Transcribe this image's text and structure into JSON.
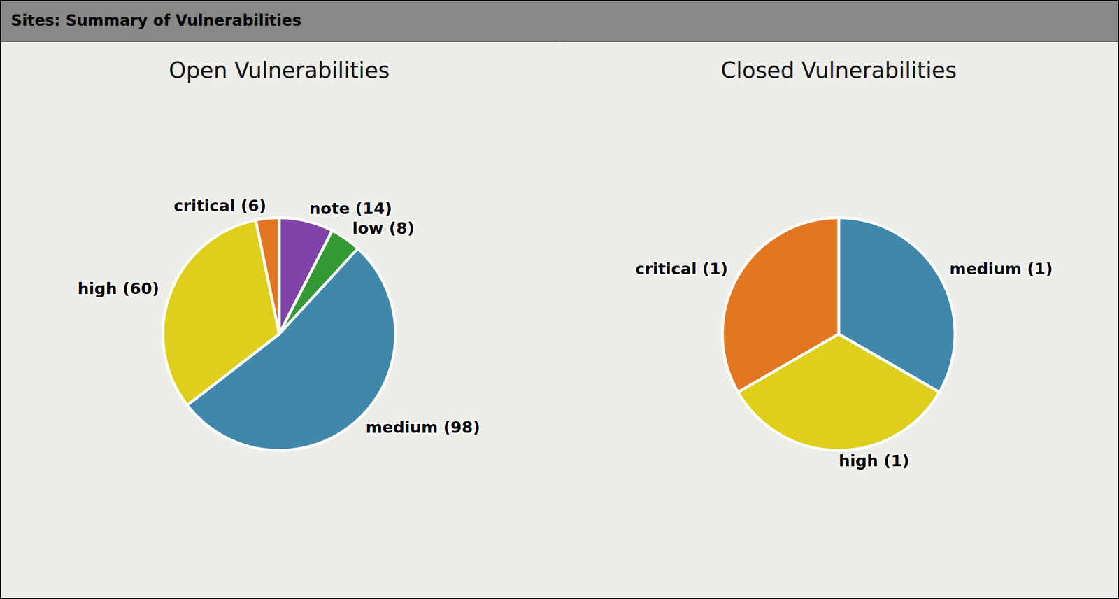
{
  "header": {
    "title": "Sites: Summary of Vulnerabilities"
  },
  "chart_data": [
    {
      "type": "pie",
      "title": "Open Vulnerabilities",
      "categories": [
        "note (14)",
        "low (8)",
        "medium (98)",
        "high (60)",
        "critical (6)"
      ],
      "values": [
        14,
        8,
        98,
        60,
        6
      ],
      "colors": [
        "#8044a8",
        "#359935",
        "#4088ab",
        "#ddcf1a",
        "#e37622"
      ]
    },
    {
      "type": "pie",
      "title": "Closed Vulnerabilities",
      "categories": [
        "medium (1)",
        "high (1)",
        "critical (1)"
      ],
      "values": [
        1,
        1,
        1
      ],
      "colors": [
        "#4088ab",
        "#ddcf1a",
        "#e37622"
      ]
    }
  ]
}
